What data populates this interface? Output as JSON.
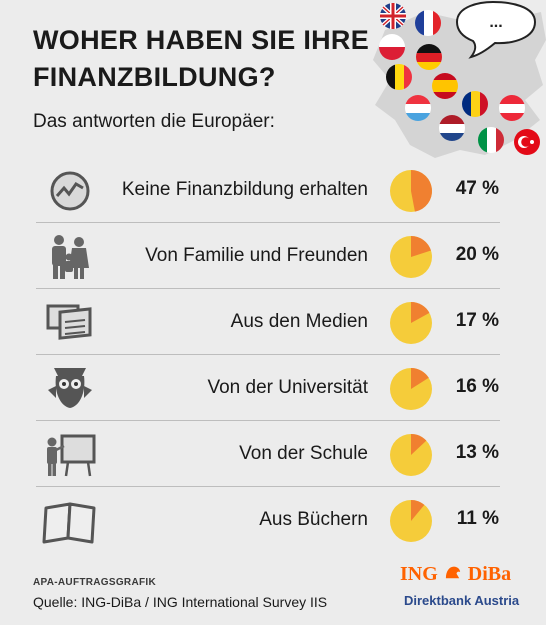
{
  "title": "WOHER HABEN SIE IHRE FINANZBILDUNG?",
  "subtitle": "Das antworten die Europäer:",
  "bubble_text": "...",
  "chart_data": {
    "type": "pie",
    "title": "WOHER HABEN SIE IHRE FINANZBILDUNG?",
    "subtitle": "Das antworten die Europäer:",
    "unit": "%",
    "categories": [
      "Keine Finanzbildung erhalten",
      "Von Familie und Freunden",
      "Aus den Medien",
      "Von der Universität",
      "Von der Schule",
      "Aus Büchern"
    ],
    "values": [
      47,
      20,
      17,
      16,
      13,
      11
    ],
    "value_labels": [
      "47 %",
      "20 %",
      "17 %",
      "16 %",
      "13 %",
      "11 %"
    ],
    "icons": [
      "chart-trend-icon",
      "family-icon",
      "media-icon",
      "owl-graduate-icon",
      "teacher-board-icon",
      "book-icon"
    ],
    "colors": {
      "slice": "#f08030",
      "remainder": "#f5cc3a"
    }
  },
  "flags": [
    "uk-flag-icon",
    "france-flag-icon",
    "poland-flag-icon",
    "germany-flag-icon",
    "belgium-flag-icon",
    "spain-flag-icon",
    "romania-flag-icon",
    "austria-flag-icon",
    "luxembourg-flag-icon",
    "netherlands-flag-icon",
    "italy-flag-icon",
    "turkey-flag-icon"
  ],
  "footer": {
    "credit": "APA-AUFTRAGSGRAFIK",
    "source": "Quelle: ING-DiBa / ING International Survey IIS"
  },
  "logo": {
    "name_left": "ING",
    "name_right": "DiBa",
    "tagline": "Direktbank Austria",
    "color": "#ff6200",
    "tagline_color": "#2b4a8c"
  }
}
